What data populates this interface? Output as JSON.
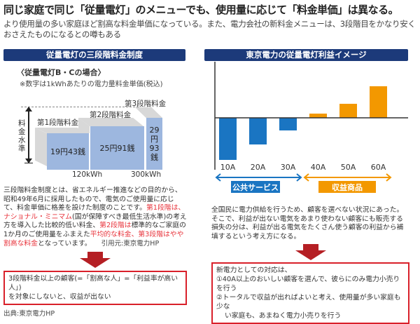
{
  "header": {
    "title": "同じ家庭で同じ「従量電灯」のメニューでも、使用量に応じて「料金単価」は異なる。",
    "subtitle_lines": [
      "より使用量の多い家庭ほど割高な料金単価になっている。また、電力会社の新料金メニューは、3段階目をかなり安く",
      "おさえたものになるとの噂もある"
    ]
  },
  "left": {
    "section_title": "従量電灯の三段階料金制度",
    "case_title": "〈従量電灯B・Cの場合〉",
    "note": "※数字は1kWhあたりの電力量料金単価(税込)",
    "axis_label": "料金水準",
    "tiers": [
      {
        "label": "第1段階料金",
        "price": "19円43銭"
      },
      {
        "label": "第2段階料金",
        "price": "25円91銭"
      },
      {
        "label": "第3段階料金",
        "price_lines": [
          "29円",
          "93銭"
        ]
      }
    ],
    "thresholds": [
      "120kWh",
      "300kWh"
    ],
    "paragraph": [
      {
        "t": "三段階料金制度とは、省エネルギー推進などの目的から、昭和49年6月に採用したもので、電気のご使用量に応じて、料金単価に格差を設けた制度のことです。",
        "red": false
      },
      {
        "t": "第1段階は、ナショナル・ミニマム",
        "red": true
      },
      {
        "t": "(国が保障すべき最低生活水準)の考え方を導入した比較的低い料金、",
        "red": false
      },
      {
        "t": "第2段階は",
        "red": true
      },
      {
        "t": "標準的なご家庭の1か月のご使用量をふまえた",
        "red": false
      },
      {
        "t": "平均的な料金、第3段階はやや割高な料金",
        "red": true
      },
      {
        "t": "となっています。",
        "red": false
      }
    ],
    "citation": "引用元:東京電力HP",
    "conclusion_lines": [
      "3段階料金以上の顧客(=「割高な人」=「利益率が高い人」)",
      "を対象にしないと、収益が出ない"
    ],
    "source": "出典:東京電力HP"
  },
  "right": {
    "section_title": "東京電力の従量電灯利益イメージ",
    "groups": [
      {
        "label": "公共サービス",
        "color": "#1a75c2"
      },
      {
        "label": "収益商品",
        "color": "#f39800"
      }
    ],
    "paragraph": "全国民に電力供給を行うため、顧客を選べない状況にあった。そこで、利益が出ない電気をあまり使わない顧客にも販売する損失の分は、利益が出る電気をたくさん使う顧客の利益から補填するという考え方になる。",
    "box_lines": [
      "新電力としての対応は、",
      "①40A以上のおいしい顧客を選んで、彼らにのみ電力小売りを行う",
      "②トータルで収益が出ればよいと考え、使用量が多い家庭も少な",
      "い家庭も、あまねく電力小売りを行う"
    ]
  },
  "chart_data": {
    "type": "bar",
    "categories": [
      "10A",
      "20A",
      "30A",
      "40A",
      "50A",
      "60A"
    ],
    "values": [
      -60,
      -38,
      -18,
      6,
      20,
      45
    ],
    "colors": [
      "#1a75c2",
      "#1a75c2",
      "#1a75c2",
      "#f39800",
      "#f39800",
      "#f39800"
    ],
    "title": "東京電力の従量電灯利益イメージ",
    "xlabel": "",
    "ylabel": "",
    "grid": false,
    "ylim": [
      -62,
      80
    ]
  }
}
